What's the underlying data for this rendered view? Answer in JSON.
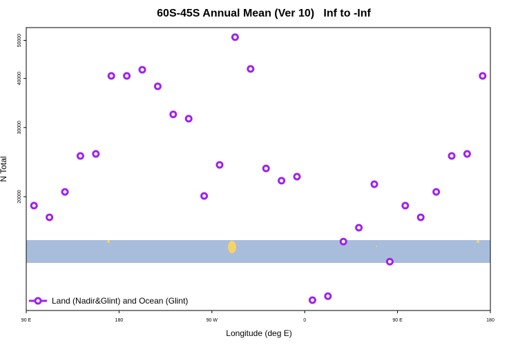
{
  "chart_data": {
    "type": "scatter",
    "title": "60S-45S Annual Mean (Ver 10)   Inf to -Inf",
    "x_label": "Longitude (deg E)",
    "y_label": "N Total",
    "xlim": [
      90,
      540
    ],
    "xticks": [
      {
        "value": 90,
        "label": "90 E"
      },
      {
        "value": 180,
        "label": "180"
      },
      {
        "value": 270,
        "label": "90 W"
      },
      {
        "value": 360,
        "label": "0"
      },
      {
        "value": 450,
        "label": "90 E"
      },
      {
        "value": 540,
        "label": "180"
      }
    ],
    "ylim": [
      10260,
      53900
    ],
    "yticks": [
      20000,
      30000,
      40000,
      50000
    ],
    "y_log_scale": true,
    "legend_position": "bottom-left",
    "series": [
      {
        "name": "Land (Nadir&Glint) and Ocean (Glint)",
        "color": "#a020f0",
        "x": [
          97.5,
          112.5,
          127.5,
          142.5,
          157.5,
          172.5,
          187.5,
          202.5,
          217.5,
          232.5,
          247.5,
          262.5,
          277.5,
          292.5,
          307.5,
          322.5,
          337.5,
          352.5,
          367.5,
          382.5,
          397.5,
          412.5,
          427.5,
          442.5,
          457.5,
          472.5,
          487.5,
          502.5,
          517.5,
          532.5
        ],
        "values": [
          18980,
          17720,
          20570,
          25400,
          25700,
          40600,
          40600,
          42100,
          38200,
          32400,
          31600,
          20080,
          24100,
          50950,
          42300,
          23600,
          21960,
          22490,
          10900,
          11160,
          15370,
          16670,
          21510,
          13660,
          18980,
          17720,
          20570,
          25400,
          25700,
          40600
        ]
      }
    ]
  }
}
